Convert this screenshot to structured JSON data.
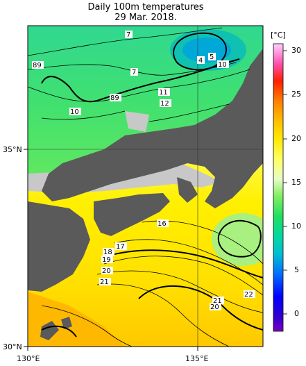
{
  "title": {
    "line1": "Daily 100m temperatures",
    "line2": "29 Mar. 2018."
  },
  "axes": {
    "lat_labels": [
      "35°N",
      "30°N"
    ],
    "lon_labels": [
      "130°E",
      "135°E"
    ]
  },
  "colorbar": {
    "unit": "[°C]",
    "ticks": [
      "30",
      "25",
      "20",
      "15",
      "10",
      "5",
      "0"
    ],
    "colors": [
      "#7a00c0",
      "#0000c8",
      "#0050ff",
      "#00a0ff",
      "#00c8c8",
      "#00d8a0",
      "#20e060",
      "#60e040",
      "#a0f060",
      "#d0f8a0",
      "#f4f8d0",
      "#ffffa0",
      "#fff000",
      "#ffd800",
      "#ffb000",
      "#ff8000",
      "#ff4000",
      "#e00000",
      "#ff40a0",
      "#ff90e0",
      "#ffd0ff"
    ]
  },
  "contour_labels": [
    "7",
    "89",
    "7",
    "4",
    "5",
    "10",
    "89",
    "11",
    "12",
    "10",
    "16",
    "17",
    "18",
    "19",
    "20",
    "21",
    "21",
    "20",
    "22"
  ],
  "colors": {
    "land": "#5a5a5a",
    "nodata": "#c8c8c8"
  }
}
